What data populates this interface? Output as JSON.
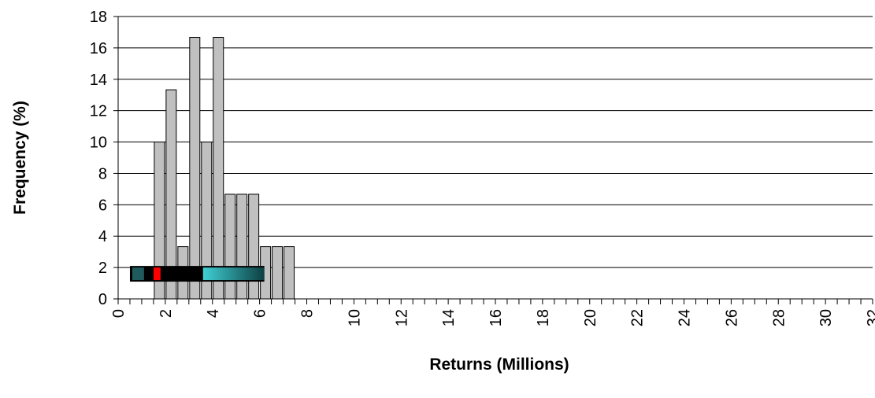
{
  "chart_data": {
    "type": "bar",
    "xlabel": "Returns (Millions)",
    "ylabel": "Frequency (%)",
    "xlim": [
      0,
      32
    ],
    "ylim": [
      0,
      18
    ],
    "y_ticks": [
      0,
      2,
      4,
      6,
      8,
      10,
      12,
      14,
      16,
      18
    ],
    "x_ticks": [
      0,
      2,
      4,
      6,
      8,
      10,
      12,
      14,
      16,
      18,
      20,
      22,
      24,
      26,
      28,
      30,
      32
    ],
    "bar_width": 0.5,
    "grid": "horizontal",
    "bars": {
      "x": [
        1.5,
        2.0,
        2.5,
        3.0,
        3.5,
        4.0,
        4.5,
        5.0,
        5.5,
        6.0,
        6.5,
        7.0
      ],
      "values": [
        10,
        13.33,
        3.33,
        16.67,
        10,
        16.67,
        6.67,
        6.67,
        6.67,
        3.33,
        3.33,
        3.33
      ]
    },
    "range_bar": {
      "from": 0.5,
      "to": 6.2,
      "y_from": 1.1,
      "y_to": 2.1,
      "segments": [
        {
          "from": 0.6,
          "to": 1.1,
          "color": "#1f5a5c"
        },
        {
          "from": 1.1,
          "to": 1.5,
          "color": "#000000"
        },
        {
          "from": 1.5,
          "to": 1.8,
          "color": "#ff0000"
        },
        {
          "from": 1.8,
          "to": 3.6,
          "color": "#000000"
        },
        {
          "from": 3.6,
          "to": 6.2,
          "color": "gradient"
        }
      ],
      "gradient_colors": [
        "#3fd0d4",
        "#0d3f42"
      ]
    },
    "colors": {
      "bar_fill": "#c0c0c0",
      "bar_stroke": "#000000",
      "grid": "#000000"
    }
  }
}
